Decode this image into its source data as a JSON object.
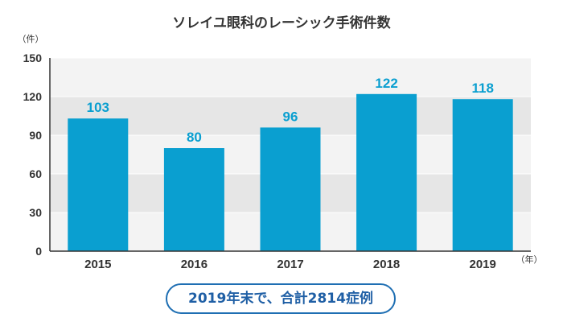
{
  "chart_data": {
    "type": "bar",
    "title": "ソレイユ眼科のレーシック手術件数",
    "y_unit": "（件）",
    "x_unit": "（年）",
    "categories": [
      "2015",
      "2016",
      "2017",
      "2018",
      "2019"
    ],
    "values": [
      103,
      80,
      96,
      122,
      118
    ],
    "ylim": [
      0,
      150
    ],
    "yticks": [
      "0",
      "30",
      "60",
      "90",
      "120",
      "150"
    ],
    "grid": true,
    "legend": "none",
    "colors": {
      "bar": "#0a9fd0",
      "label": "#0a9fd0",
      "plot_bg_light": "#f3f3f3",
      "plot_bg_dark": "#e6e6e6",
      "grid": "#ffffff",
      "axis": "#333333"
    }
  },
  "summary": {
    "text": "2019年末で、合計2814症例",
    "border_color": "#1f6fb3"
  }
}
